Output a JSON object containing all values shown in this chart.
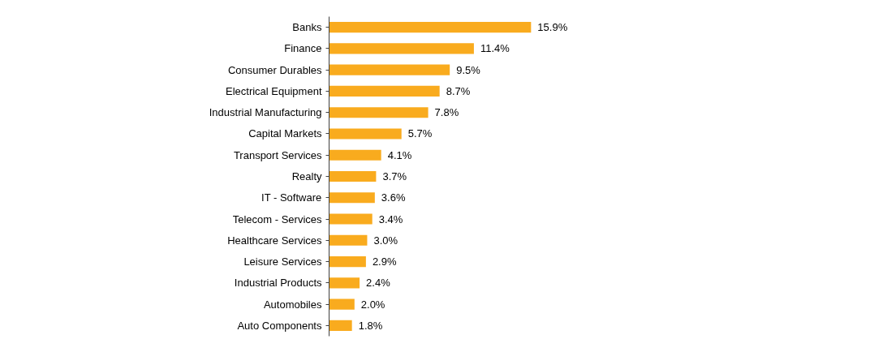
{
  "chart_data": {
    "type": "bar",
    "orientation": "horizontal",
    "categories": [
      "Banks",
      "Finance",
      "Consumer Durables",
      "Electrical Equipment",
      "Industrial Manufacturing",
      "Capital Markets",
      "Transport Services",
      "Realty",
      "IT - Software",
      "Telecom - Services",
      "Healthcare Services",
      "Leisure Services",
      "Industrial Products",
      "Automobiles",
      "Auto Components"
    ],
    "values": [
      15.9,
      11.4,
      9.5,
      8.7,
      7.8,
      5.7,
      4.1,
      3.7,
      3.6,
      3.4,
      3.0,
      2.9,
      2.4,
      2.0,
      1.8
    ],
    "value_labels": [
      "15.9%",
      "11.4%",
      "9.5%",
      "8.7%",
      "7.8%",
      "5.7%",
      "4.1%",
      "3.7%",
      "3.6%",
      "3.4%",
      "3.0%",
      "2.9%",
      "2.4%",
      "2.0%",
      "1.8%"
    ],
    "color": "#f9ab1e",
    "grid": false
  }
}
